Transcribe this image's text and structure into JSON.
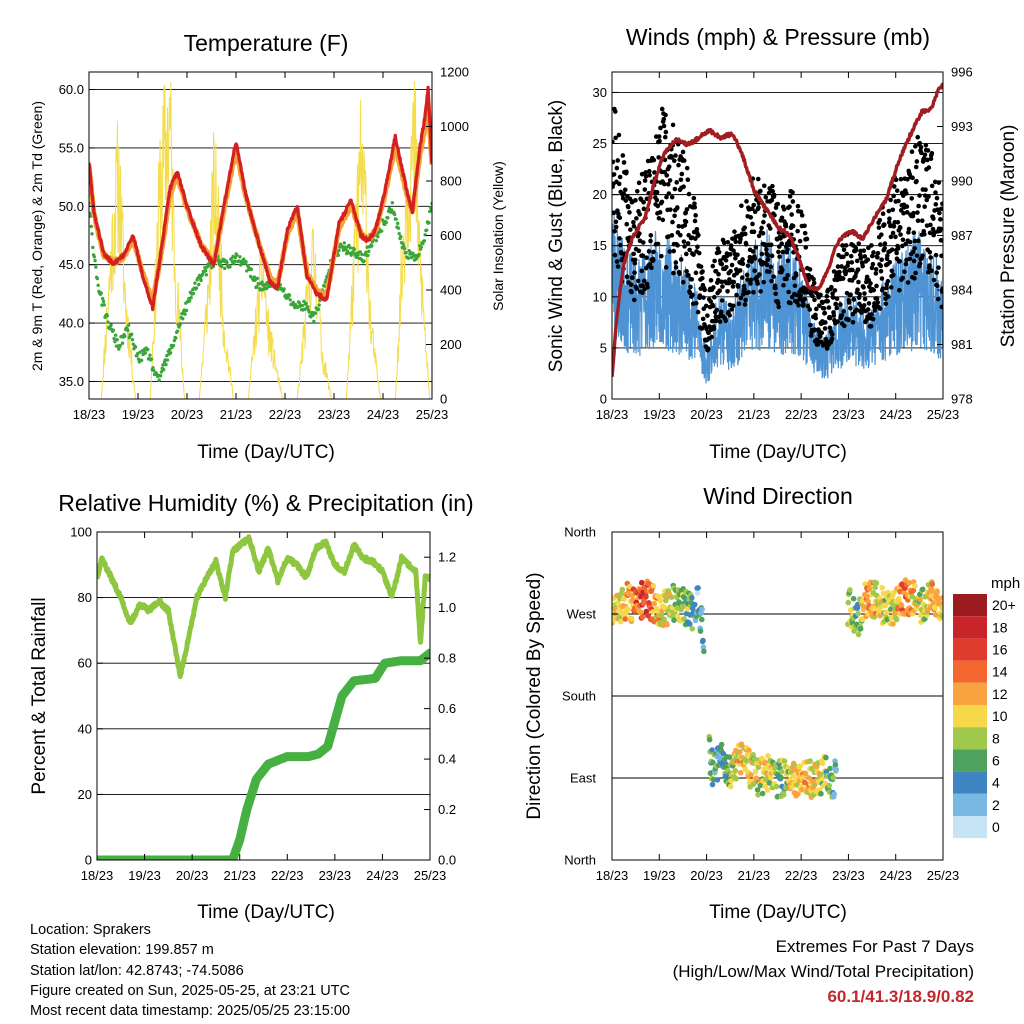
{
  "panels": {
    "temperature": {
      "title": "Temperature (F)",
      "xlabel": "Time (Day/UTC)",
      "ylabel_left": "2m & 9m T (Red, Orange) & 2m Td (Green)",
      "ylabel_right": "Solar Insolation (Yellow)"
    },
    "winds": {
      "title": "Winds (mph) & Pressure (mb)",
      "xlabel": "Time (Day/UTC)",
      "ylabel_left": "Sonic Wind & Gust (Blue, Black)",
      "ylabel_right": "Station Pressure (Maroon)"
    },
    "humidity": {
      "title": "Relative Humidity (%) & Precipitation (in)",
      "xlabel": "Time (Day/UTC)",
      "ylabel_left": "Percent & Total Rainfall"
    },
    "direction": {
      "title": "Wind Direction",
      "xlabel": "Time (Day/UTC)",
      "ylabel_left": "Direction (Colored By Speed)",
      "legend_title": "mph",
      "legend_labels": [
        "20+",
        "18",
        "16",
        "14",
        "12",
        "10",
        "8",
        "6",
        "4",
        "2",
        "0"
      ],
      "legend_colors": [
        "#9b1c20",
        "#c8242a",
        "#e03c2d",
        "#f2682f",
        "#f9a240",
        "#f7d84a",
        "#a0c84a",
        "#4ea25e",
        "#3e85c2",
        "#7ab8e4",
        "#c6e3f5"
      ]
    }
  },
  "colors": {
    "t2m": "#d42020",
    "t9m": "#f4a238",
    "td2m": "#3aa63a",
    "solar": "#f4dc4a",
    "wind": "#4e94d4",
    "gust": "#000000",
    "pressure": "#a01e22",
    "rh": "#8dc63f",
    "precip": "#46b142"
  },
  "info": {
    "location": "Location: Sprakers",
    "elevation": "Station elevation: 199.857 m",
    "latlon": "Station lat/lon: 42.8743; -74.5086",
    "created": "Figure created on Sun, 2025-05-25, at 23:21 UTC",
    "recent": "Most recent data timestamp: 2025/05/25 23:15:00"
  },
  "extremes": {
    "line1": "Extremes For Past 7 Days",
    "line2": "(High/Low/Max Wind/Total Precipitation)",
    "values": "60.1/41.3/18.9/0.82"
  },
  "chart_data": [
    {
      "type": "line",
      "title": "Temperature (F)",
      "xlabel": "Time (Day/UTC)",
      "ylabel": "2m & 9m T (Red, Orange) & 2m Td (Green)",
      "ylabel_right": "Solar Insolation (Yellow)",
      "x_ticks": [
        "18/23",
        "19/23",
        "20/23",
        "21/23",
        "22/23",
        "23/23",
        "24/23",
        "25/23"
      ],
      "xlim": [
        0,
        7
      ],
      "ylim": [
        33.5,
        61.5
      ],
      "y_ticks": [
        35.0,
        40.0,
        45.0,
        50.0,
        55.0,
        60.0
      ],
      "y2lim": [
        0,
        1200
      ],
      "y2_ticks": [
        0,
        200,
        400,
        600,
        800,
        1000,
        1200
      ],
      "series": [
        {
          "name": "2m T",
          "color": "#d42020",
          "axis": "left",
          "x": [
            0,
            0.1,
            0.3,
            0.5,
            0.7,
            0.9,
            1.1,
            1.3,
            1.5,
            1.65,
            1.8,
            2.0,
            2.3,
            2.55,
            2.75,
            3.0,
            3.2,
            3.45,
            3.7,
            3.85,
            4.05,
            4.25,
            4.45,
            4.65,
            4.85,
            5.1,
            5.35,
            5.55,
            5.7,
            5.85,
            6.05,
            6.25,
            6.45,
            6.6,
            6.75,
            6.85,
            6.92,
            7.0
          ],
          "y": [
            53.8,
            49.5,
            46.0,
            45.0,
            45.8,
            47.5,
            44.0,
            41.3,
            47.0,
            51.5,
            53.0,
            50.0,
            46.5,
            45.0,
            50.0,
            55.5,
            51.0,
            47.0,
            43.5,
            43.0,
            48.0,
            50.0,
            44.0,
            42.5,
            42.0,
            48.5,
            50.5,
            47.5,
            47.0,
            48.0,
            51.5,
            56.0,
            52.0,
            49.5,
            55.0,
            57.5,
            60.1,
            53.5
          ]
        },
        {
          "name": "9m T",
          "color": "#f4a238",
          "axis": "left",
          "x": [
            0,
            0.1,
            0.3,
            0.5,
            0.7,
            0.9,
            1.1,
            1.3,
            1.5,
            1.65,
            1.8,
            2.0,
            2.3,
            2.55,
            2.75,
            3.0,
            3.2,
            3.45,
            3.7,
            3.85,
            4.05,
            4.25,
            4.45,
            4.65,
            4.85,
            5.1,
            5.35,
            5.55,
            5.7,
            5.85,
            6.05,
            6.25,
            6.45,
            6.6,
            6.75,
            6.85,
            6.92,
            7.0
          ],
          "y": [
            53.5,
            49.3,
            45.8,
            45.2,
            45.6,
            47.2,
            44.2,
            41.8,
            46.6,
            51.0,
            52.6,
            49.8,
            46.6,
            45.2,
            49.6,
            54.9,
            50.8,
            47.1,
            43.8,
            43.3,
            47.6,
            49.6,
            44.2,
            42.8,
            42.3,
            48.1,
            50.1,
            47.6,
            47.2,
            47.9,
            51.1,
            55.2,
            51.6,
            49.5,
            54.3,
            56.6,
            58.8,
            53.4
          ]
        },
        {
          "name": "2m Td",
          "color": "#3aa63a",
          "axis": "left",
          "x": [
            0,
            0.1,
            0.2,
            0.35,
            0.5,
            0.6,
            0.8,
            1.0,
            1.2,
            1.4,
            1.55,
            1.7,
            1.85,
            2.0,
            2.2,
            2.4,
            2.6,
            2.8,
            3.0,
            3.2,
            3.4,
            3.6,
            3.8,
            4.0,
            4.2,
            4.4,
            4.6,
            4.8,
            5.0,
            5.2,
            5.4,
            5.6,
            5.8,
            6.0,
            6.2,
            6.4,
            6.6,
            6.8,
            7.0
          ],
          "y": [
            50.0,
            46.0,
            43.0,
            40.5,
            39.0,
            38.0,
            39.5,
            37.0,
            37.5,
            35.0,
            36.5,
            38.0,
            40.0,
            41.5,
            43.5,
            44.5,
            45.5,
            45.0,
            45.5,
            45.0,
            43.5,
            43.0,
            43.5,
            42.5,
            41.5,
            41.5,
            40.5,
            43.0,
            46.0,
            46.5,
            46.0,
            45.5,
            47.0,
            48.5,
            50.0,
            46.5,
            45.5,
            46.5,
            50.0
          ]
        },
        {
          "name": "Solar Insolation",
          "color": "#f4dc4a",
          "axis": "right",
          "x": [
            0,
            0.25,
            0.45,
            0.6,
            0.75,
            0.95,
            1.25,
            1.45,
            1.55,
            1.65,
            1.75,
            1.95,
            2.25,
            2.45,
            2.55,
            2.65,
            2.75,
            2.95,
            3.25,
            3.45,
            3.55,
            3.65,
            3.75,
            3.95,
            4.25,
            4.45,
            4.55,
            4.65,
            4.75,
            4.95,
            5.25,
            5.45,
            5.55,
            5.65,
            5.75,
            5.95,
            6.25,
            6.45,
            6.55,
            6.65,
            6.75,
            6.95,
            7.0
          ],
          "y": [
            0,
            0,
            600,
            950,
            400,
            0,
            0,
            900,
            1050,
            1180,
            600,
            0,
            0,
            500,
            900,
            700,
            300,
            0,
            0,
            400,
            550,
            300,
            200,
            0,
            0,
            400,
            600,
            500,
            200,
            0,
            0,
            700,
            1000,
            800,
            300,
            0,
            0,
            800,
            1000,
            1050,
            600,
            0,
            0
          ]
        }
      ]
    },
    {
      "type": "scatter",
      "title": "Winds (mph) & Pressure (mb)",
      "xlabel": "Time (Day/UTC)",
      "ylabel": "Sonic Wind & Gust (Blue, Black)",
      "ylabel_right": "Station Pressure (Maroon)",
      "x_ticks": [
        "18/23",
        "19/23",
        "20/23",
        "21/23",
        "22/23",
        "23/23",
        "24/23",
        "25/23"
      ],
      "xlim": [
        0,
        7
      ],
      "ylim": [
        0,
        32
      ],
      "y_ticks": [
        0,
        5,
        10,
        15,
        20,
        25,
        30
      ],
      "y2lim": [
        978,
        996
      ],
      "y2_ticks": [
        978,
        981,
        984,
        987,
        990,
        993,
        996
      ],
      "series": [
        {
          "name": "Sonic Wind",
          "color": "#4e94d4",
          "axis": "left",
          "x": [
            0,
            0.25,
            0.5,
            0.75,
            1.0,
            1.25,
            1.5,
            1.75,
            2.0,
            2.25,
            2.5,
            2.75,
            3.0,
            3.25,
            3.5,
            3.75,
            4.0,
            4.25,
            4.5,
            4.75,
            5.0,
            5.25,
            5.5,
            5.75,
            6.0,
            6.25,
            6.5,
            6.75,
            7.0
          ],
          "y": [
            13,
            10,
            9,
            10,
            11,
            10,
            9,
            8,
            3,
            7,
            6,
            8,
            10,
            11,
            9,
            10,
            9,
            5,
            4,
            6,
            7,
            6,
            6,
            8,
            9,
            10,
            11,
            10,
            8
          ]
        },
        {
          "name": "Gust",
          "color": "#000000",
          "axis": "left",
          "x": [
            0,
            0.25,
            0.5,
            0.75,
            1.0,
            1.25,
            1.5,
            1.75,
            2.0,
            2.25,
            2.5,
            2.75,
            3.0,
            3.25,
            3.5,
            3.75,
            4.0,
            4.25,
            4.5,
            4.75,
            5.0,
            5.25,
            5.5,
            5.75,
            6.0,
            6.25,
            6.5,
            6.75,
            7.0
          ],
          "y": [
            22,
            17,
            15,
            17,
            21,
            20,
            18,
            14,
            7,
            12,
            11,
            14,
            16,
            17,
            14,
            15,
            14,
            9,
            7,
            10,
            12,
            11,
            11,
            14,
            16,
            18,
            19,
            18,
            14
          ]
        },
        {
          "name": "Station Pressure",
          "color": "#a01e22",
          "axis": "right",
          "x": [
            0,
            0.1,
            0.25,
            0.45,
            0.7,
            0.9,
            1.1,
            1.35,
            1.6,
            1.8,
            2.05,
            2.3,
            2.55,
            2.75,
            3.0,
            3.25,
            3.5,
            3.75,
            3.95,
            4.15,
            4.35,
            4.55,
            4.75,
            4.9,
            5.1,
            5.3,
            5.55,
            5.8,
            6.05,
            6.3,
            6.55,
            6.75,
            6.9,
            7.0
          ],
          "y": [
            979.2,
            982.5,
            985.5,
            987.0,
            988.0,
            990.0,
            991.5,
            992.3,
            992.0,
            992.3,
            992.8,
            992.4,
            992.6,
            991.5,
            989.5,
            988.5,
            987.5,
            987.0,
            985.8,
            984.2,
            984.0,
            985.0,
            986.5,
            987.0,
            987.2,
            986.8,
            988.0,
            989.0,
            991.0,
            992.5,
            993.8,
            994.0,
            995.0,
            995.3
          ]
        }
      ]
    },
    {
      "type": "line",
      "title": "Relative Humidity (%) & Precipitation (in)",
      "xlabel": "Time (Day/UTC)",
      "ylabel": "Percent & Total Rainfall",
      "x_ticks": [
        "18/23",
        "19/23",
        "20/23",
        "21/23",
        "22/23",
        "23/23",
        "24/23",
        "25/23"
      ],
      "xlim": [
        0,
        7
      ],
      "ylim": [
        0,
        100
      ],
      "y_ticks": [
        0,
        20,
        40,
        60,
        80,
        100
      ],
      "y2lim": [
        0,
        1.3
      ],
      "y2_ticks": [
        0.0,
        0.2,
        0.4,
        0.6,
        0.8,
        1.0,
        1.2
      ],
      "series": [
        {
          "name": "Relative Humidity",
          "color": "#8dc63f",
          "axis": "left",
          "x": [
            0,
            0.1,
            0.3,
            0.5,
            0.7,
            0.9,
            1.1,
            1.3,
            1.5,
            1.65,
            1.75,
            1.9,
            2.1,
            2.3,
            2.5,
            2.7,
            2.85,
            3.0,
            3.2,
            3.4,
            3.6,
            3.8,
            4.0,
            4.2,
            4.4,
            4.6,
            4.8,
            5.0,
            5.2,
            5.4,
            5.6,
            5.8,
            6.0,
            6.2,
            6.4,
            6.55,
            6.7,
            6.8,
            6.9,
            7.0
          ],
          "y": [
            86,
            92,
            86,
            80,
            72,
            78,
            76,
            79,
            76,
            64,
            56,
            66,
            80,
            86,
            91,
            80,
            94,
            96,
            98,
            88,
            95,
            85,
            92,
            90,
            86,
            95,
            97,
            90,
            88,
            96,
            92,
            91,
            88,
            80,
            92,
            90,
            88,
            66,
            86,
            86
          ]
        },
        {
          "name": "Total Precipitation",
          "color": "#46b142",
          "axis": "right",
          "x": [
            0,
            2.5,
            2.85,
            3.0,
            3.15,
            3.35,
            3.6,
            4.0,
            4.45,
            4.65,
            4.85,
            5.15,
            5.4,
            5.85,
            6.05,
            6.4,
            6.8,
            7.0
          ],
          "y": [
            0,
            0,
            0,
            0.08,
            0.2,
            0.32,
            0.38,
            0.41,
            0.41,
            0.42,
            0.45,
            0.65,
            0.71,
            0.72,
            0.78,
            0.79,
            0.79,
            0.82
          ]
        }
      ]
    },
    {
      "type": "scatter",
      "title": "Wind Direction",
      "xlabel": "Time (Day/UTC)",
      "ylabel": "Direction (Colored By Speed)",
      "x_ticks": [
        "18/23",
        "19/23",
        "20/23",
        "21/23",
        "22/23",
        "23/23",
        "24/23",
        "25/23"
      ],
      "y_ticks": [
        "North",
        "East",
        "South",
        "West",
        "North"
      ],
      "xlim": [
        0,
        7
      ],
      "ylim": [
        0,
        360
      ],
      "series": [
        {
          "name": "Direction",
          "color_by": "speed_mph",
          "x": [
            0.1,
            0.3,
            0.5,
            0.7,
            0.9,
            1.1,
            1.3,
            1.5,
            1.7,
            1.8,
            1.9,
            2.1,
            2.3,
            2.5,
            2.7,
            2.9,
            3.1,
            3.3,
            3.5,
            3.7,
            3.9,
            4.1,
            4.3,
            4.5,
            4.7,
            5.0,
            5.2,
            5.4,
            5.6,
            5.8,
            6.0,
            6.2,
            6.4,
            6.6,
            6.8,
            6.95
          ],
          "y": [
            270,
            285,
            275,
            290,
            280,
            275,
            282,
            278,
            270,
            285,
            265,
            100,
            110,
            95,
            115,
            100,
            90,
            95,
            88,
            92,
            85,
            90,
            88,
            95,
            80,
            280,
            265,
            290,
            285,
            275,
            280,
            290,
            285,
            278,
            290,
            280
          ],
          "speed": [
            10,
            12,
            14,
            16,
            12,
            10,
            8,
            8,
            6,
            4,
            3,
            6,
            4,
            8,
            12,
            10,
            8,
            10,
            6,
            8,
            10,
            12,
            10,
            8,
            4,
            8,
            6,
            12,
            10,
            8,
            10,
            14,
            10,
            8,
            12,
            10
          ]
        }
      ]
    }
  ]
}
